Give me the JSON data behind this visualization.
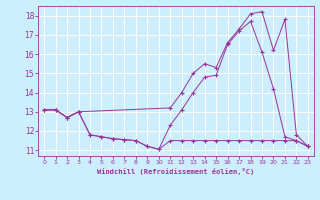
{
  "xlabel": "Windchill (Refroidissement éolien,°C)",
  "bg_color": "#cceeff",
  "line_color": "#993399",
  "grid_color": "#ffffff",
  "xlim": [
    -0.5,
    23.5
  ],
  "ylim": [
    10.7,
    18.5
  ],
  "yticks": [
    11,
    12,
    13,
    14,
    15,
    16,
    17,
    18
  ],
  "xticks": [
    0,
    1,
    2,
    3,
    4,
    5,
    6,
    7,
    8,
    9,
    10,
    11,
    12,
    13,
    14,
    15,
    16,
    17,
    18,
    19,
    20,
    21,
    22,
    23
  ],
  "line1_x": [
    0,
    1,
    2,
    3,
    4,
    5,
    6,
    7,
    8,
    9,
    10,
    11,
    12,
    13,
    14,
    15,
    16,
    17,
    18,
    19,
    20,
    21,
    22,
    23
  ],
  "line1_y": [
    13.1,
    13.1,
    12.7,
    13.0,
    11.8,
    11.7,
    11.6,
    11.55,
    11.5,
    11.2,
    11.05,
    11.5,
    11.5,
    11.5,
    11.5,
    11.5,
    11.5,
    11.5,
    11.5,
    11.5,
    11.5,
    11.5,
    11.5,
    11.2
  ],
  "line2_x": [
    0,
    1,
    2,
    3,
    4,
    5,
    6,
    7,
    8,
    9,
    10,
    11,
    12,
    13,
    14,
    15,
    16,
    17,
    18,
    19,
    20,
    21,
    22,
    23
  ],
  "line2_y": [
    13.1,
    13.1,
    12.7,
    13.0,
    11.8,
    11.7,
    11.6,
    11.55,
    11.5,
    11.2,
    11.05,
    12.3,
    13.1,
    14.0,
    14.8,
    14.9,
    16.5,
    17.2,
    17.7,
    16.1,
    14.2,
    11.7,
    11.5,
    11.2
  ],
  "line3_x": [
    0,
    1,
    2,
    3,
    11,
    12,
    13,
    14,
    15,
    16,
    17,
    18,
    19,
    20,
    21,
    22,
    23
  ],
  "line3_y": [
    13.1,
    13.1,
    12.7,
    13.0,
    13.2,
    14.0,
    15.0,
    15.5,
    15.3,
    16.6,
    17.3,
    18.1,
    18.2,
    16.2,
    17.8,
    11.8,
    11.2
  ]
}
